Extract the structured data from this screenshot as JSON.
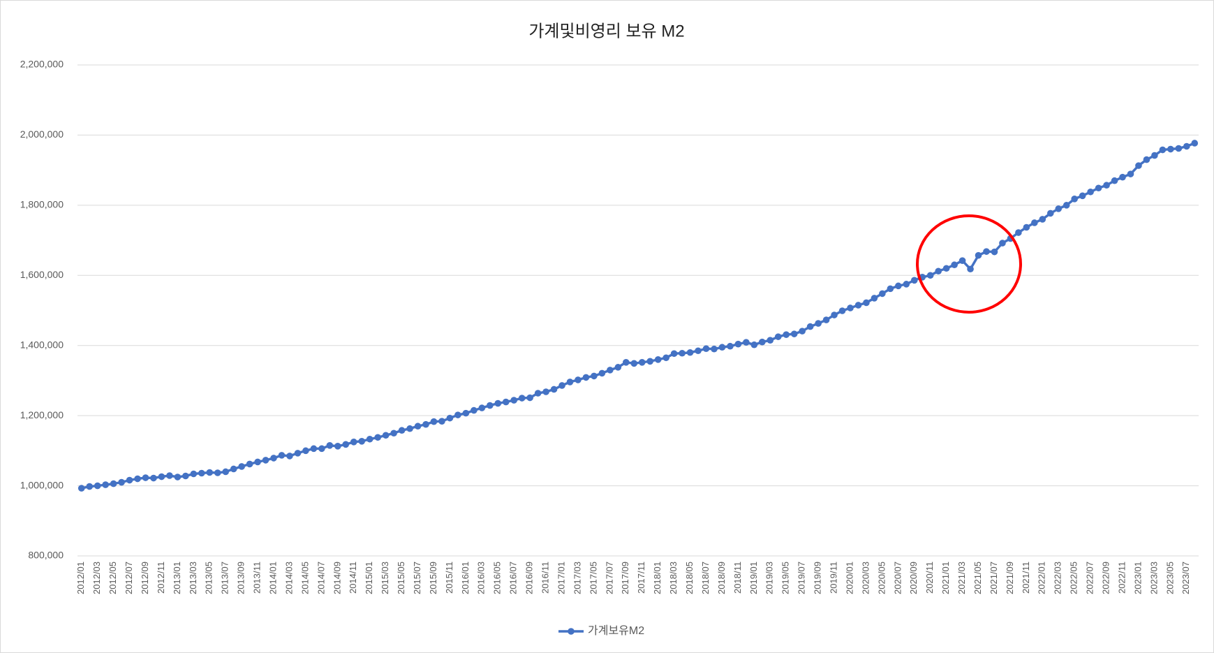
{
  "chart_data": {
    "type": "line",
    "title": "가계및비영리 보유 M2",
    "categories": [
      "2012/01",
      null,
      "2012/03",
      null,
      "2012/05",
      null,
      "2012/07",
      null,
      "2012/09",
      null,
      "2012/11",
      null,
      "2013/01",
      null,
      "2013/03",
      null,
      "2013/05",
      null,
      "2013/07",
      null,
      "2013/09",
      null,
      "2013/11",
      null,
      "2014/01",
      null,
      "2014/03",
      null,
      "2014/05",
      null,
      "2014/07",
      null,
      "2014/09",
      null,
      "2014/11",
      null,
      "2015/01",
      null,
      "2015/03",
      null,
      "2015/05",
      null,
      "2015/07",
      null,
      "2015/09",
      null,
      "2015/11",
      null,
      "2016/01",
      null,
      "2016/03",
      null,
      "2016/05",
      null,
      "2016/07",
      null,
      "2016/09",
      null,
      "2016/11",
      null,
      "2017/01",
      null,
      "2017/03",
      null,
      "2017/05",
      null,
      "2017/07",
      null,
      "2017/09",
      null,
      "2017/11",
      null,
      "2018/01",
      null,
      "2018/03",
      null,
      "2018/05",
      null,
      "2018/07",
      null,
      "2018/09",
      null,
      "2018/11",
      null,
      "2019/01",
      null,
      "2019/03",
      null,
      "2019/05",
      null,
      "2019/07",
      null,
      "2019/09",
      null,
      "2019/11",
      null,
      "2020/01",
      null,
      "2020/03",
      null,
      "2020/05",
      null,
      "2020/07",
      null,
      "2020/09",
      null,
      "2020/11",
      null,
      "2021/01",
      null,
      "2021/03",
      null,
      "2021/05",
      null,
      "2021/07",
      null,
      "2021/09",
      null,
      "2021/11",
      null,
      "2022/01",
      null,
      "2022/03",
      null,
      "2022/05",
      null,
      "2022/07",
      null,
      "2022/09",
      null,
      "2022/11",
      null,
      "2023/01",
      null,
      "2023/03",
      null,
      "2023/05",
      null,
      "2023/07",
      null
    ],
    "series": [
      {
        "name": "가계보유M2",
        "color": "#4472c4",
        "values": [
          993000,
          998000,
          1000000,
          1003000,
          1006000,
          1010000,
          1016000,
          1020000,
          1023000,
          1022000,
          1026000,
          1029000,
          1025000,
          1028000,
          1034000,
          1036000,
          1038000,
          1037000,
          1040000,
          1048000,
          1055000,
          1062000,
          1068000,
          1073000,
          1079000,
          1087000,
          1085000,
          1093000,
          1100000,
          1106000,
          1106000,
          1115000,
          1113000,
          1118000,
          1125000,
          1127000,
          1133000,
          1138000,
          1144000,
          1150000,
          1158000,
          1163000,
          1170000,
          1175000,
          1183000,
          1184000,
          1193000,
          1202000,
          1207000,
          1215000,
          1222000,
          1229000,
          1235000,
          1239000,
          1244000,
          1250000,
          1251000,
          1264000,
          1268000,
          1275000,
          1286000,
          1296000,
          1302000,
          1309000,
          1313000,
          1321000,
          1330000,
          1338000,
          1352000,
          1349000,
          1352000,
          1355000,
          1360000,
          1365000,
          1377000,
          1378000,
          1380000,
          1385000,
          1391000,
          1390000,
          1395000,
          1398000,
          1404000,
          1409000,
          1402000,
          1410000,
          1415000,
          1425000,
          1431000,
          1433000,
          1441000,
          1454000,
          1463000,
          1473000,
          1487000,
          1499000,
          1507000,
          1515000,
          1522000,
          1535000,
          1548000,
          1562000,
          1570000,
          1575000,
          1586000,
          1595000,
          1600000,
          1612000,
          1620000,
          1630000,
          1642000,
          1618000,
          1657000,
          1668000,
          1667000,
          1692000,
          1705000,
          1722000,
          1737000,
          1750000,
          1760000,
          1777000,
          1790000,
          1800000,
          1818000,
          1827000,
          1838000,
          1849000,
          1857000,
          1870000,
          1880000,
          1889000,
          1913000,
          1930000,
          1942000,
          1958000,
          1960000,
          1962000,
          1968000,
          1977000
        ]
      }
    ],
    "ylim": [
      800000,
      2200000
    ],
    "yticks": [
      {
        "value": 800000,
        "label": "800,000"
      },
      {
        "value": 1000000,
        "label": "1,000,000"
      },
      {
        "value": 1200000,
        "label": "1,200,000"
      },
      {
        "value": 1400000,
        "label": "1,400,000"
      },
      {
        "value": 1600000,
        "label": "1,600,000"
      },
      {
        "value": 1800000,
        "label": "1,800,000"
      },
      {
        "value": 2000000,
        "label": "2,000,000"
      },
      {
        "value": 2200000,
        "label": "2,200,000"
      }
    ],
    "grid": true,
    "legend": "bottom"
  }
}
